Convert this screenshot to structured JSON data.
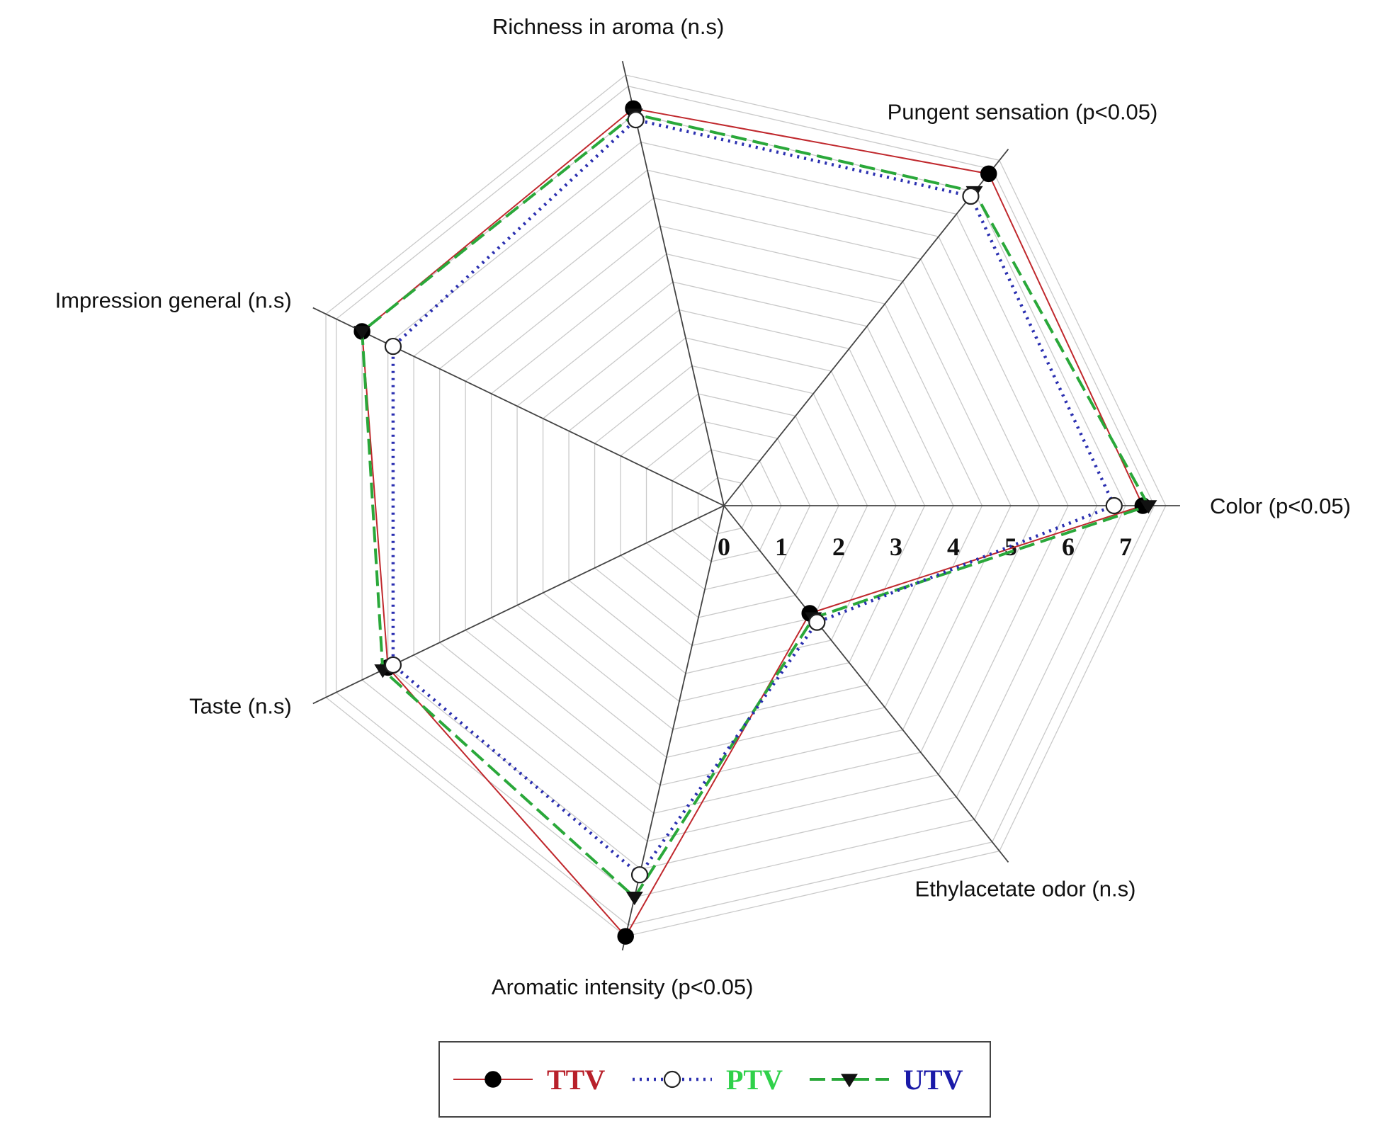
{
  "chart_data": {
    "type": "radar",
    "axes": [
      "Color (p<0.05)",
      "Pungent sensation (p<0.05)",
      "Richness in aroma (n.s)",
      "Impression general (n.s)",
      "Taste (n.s)",
      "Aromatic intensity (p<0.05)",
      "Ethylacetate odor (n.s)"
    ],
    "ticks": [
      "0",
      "1",
      "2",
      "3",
      "4",
      "5",
      "6",
      "7"
    ],
    "range": [
      0,
      7.7
    ],
    "grid": true,
    "legend_position": "bottom-center",
    "series": [
      {
        "name": "TTV",
        "color": "#c0282d",
        "line_style": "solid",
        "marker": "filled-circle",
        "values": [
          7.3,
          7.4,
          7.1,
          7.0,
          6.5,
          7.7,
          2.4
        ]
      },
      {
        "name": "PTV",
        "color": "#2a2fb0",
        "line_style": "dotted",
        "marker": "open-circle",
        "values": [
          6.8,
          6.9,
          6.9,
          6.4,
          6.4,
          6.6,
          2.6
        ]
      },
      {
        "name": "UTV",
        "color": "#2aa83a",
        "line_style": "dashed",
        "marker": "filled-triangle-down",
        "values": [
          7.4,
          7.0,
          7.0,
          7.0,
          6.6,
          7.0,
          2.5
        ]
      }
    ],
    "legend": [
      {
        "label": "TTV",
        "text_color": "#b8202a"
      },
      {
        "label": "PTV",
        "text_color": "#2fd14a"
      },
      {
        "label": "UTV",
        "text_color": "#1a1aa8"
      }
    ]
  }
}
